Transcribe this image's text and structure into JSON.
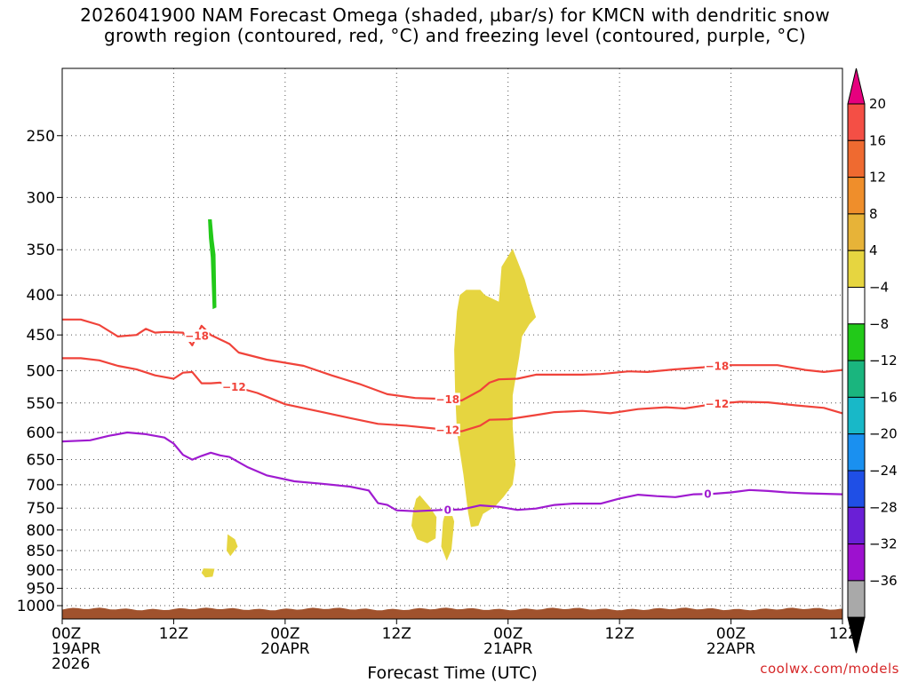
{
  "chart_data": {
    "type": "time-height",
    "title_line1": "2026041900 NAM Forecast Omega (shaded, µbar/s) for KMCN with dendritic snow",
    "title_line2": "growth region (contoured, red, °C) and freezing level (contoured, purple, °C)",
    "xlabel": "Forecast Time (UTC)",
    "xlim_hours": [
      0,
      84
    ],
    "ylim_hPa": [
      1040,
      205
    ],
    "ytick_values": [
      250,
      300,
      350,
      400,
      450,
      500,
      550,
      600,
      650,
      700,
      750,
      800,
      850,
      900,
      950,
      1000
    ],
    "ytick_labels": [
      "250",
      "300",
      "350",
      "400",
      "450",
      "500",
      "550",
      "600",
      "650",
      "700",
      "750",
      "800",
      "850",
      "900",
      "950",
      "1000"
    ],
    "xticks": [
      {
        "hour": 0,
        "lines": [
          "00Z",
          "19APR",
          "2026"
        ]
      },
      {
        "hour": 12,
        "lines": [
          "12Z"
        ]
      },
      {
        "hour": 24,
        "lines": [
          "00Z",
          "20APR"
        ]
      },
      {
        "hour": 36,
        "lines": [
          "12Z"
        ]
      },
      {
        "hour": 48,
        "lines": [
          "00Z",
          "21APR"
        ]
      },
      {
        "hour": 60,
        "lines": [
          "12Z"
        ]
      },
      {
        "hour": 72,
        "lines": [
          "00Z",
          "22APR"
        ]
      },
      {
        "hour": 84,
        "lines": [
          "12Z"
        ]
      }
    ],
    "grid": true,
    "colorbar": {
      "labels": [
        "20",
        "16",
        "12",
        "8",
        "4",
        "−4",
        "−8",
        "−12",
        "−16",
        "−20",
        "−24",
        "−28",
        "−32",
        "−36"
      ],
      "colors": [
        "#e6007e",
        "#f44f45",
        "#ef6a30",
        "#ef8e2b",
        "#e7b338",
        "#e6d540",
        "#ffffff",
        "#22c919",
        "#1ab57e",
        "#18b8c8",
        "#1a90f0",
        "#1f4fe6",
        "#6a1fd6",
        "#9d11cf",
        "#a9a9a9",
        "#000000"
      ]
    },
    "series": [
      {
        "name": "-18C isotherm",
        "color": "#f0433a",
        "label": "−18",
        "label_hours": [
          14.5,
          41.5,
          70.5
        ],
        "points": [
          [
            0,
            430
          ],
          [
            2,
            430
          ],
          [
            4,
            437
          ],
          [
            6,
            452
          ],
          [
            8,
            450
          ],
          [
            9,
            442
          ],
          [
            10,
            447
          ],
          [
            11,
            446
          ],
          [
            13,
            447
          ],
          [
            14,
            464
          ],
          [
            15,
            438
          ],
          [
            16,
            450
          ],
          [
            17,
            456
          ],
          [
            18,
            462
          ],
          [
            19,
            474
          ],
          [
            22,
            484
          ],
          [
            26,
            493
          ],
          [
            29,
            507
          ],
          [
            32,
            520
          ],
          [
            35,
            536
          ],
          [
            38,
            542
          ],
          [
            40,
            543
          ],
          [
            41,
            543
          ],
          [
            43,
            546
          ],
          [
            44,
            538
          ],
          [
            45,
            530
          ],
          [
            46,
            518
          ],
          [
            47,
            513
          ],
          [
            49,
            512
          ],
          [
            51,
            506
          ],
          [
            53,
            506
          ],
          [
            56,
            506
          ],
          [
            58,
            505
          ],
          [
            61,
            501
          ],
          [
            63,
            502
          ],
          [
            66,
            498
          ],
          [
            69,
            495
          ],
          [
            71,
            492
          ],
          [
            74,
            492
          ],
          [
            77,
            492
          ],
          [
            80,
            499
          ],
          [
            82,
            502
          ],
          [
            84,
            499
          ]
        ]
      },
      {
        "name": "-12C isotherm",
        "color": "#f0433a",
        "label": "−12",
        "label_hours": [
          18.5,
          41.5,
          70.5
        ],
        "points": [
          [
            0,
            482
          ],
          [
            2,
            482
          ],
          [
            4,
            485
          ],
          [
            6,
            493
          ],
          [
            8,
            498
          ],
          [
            10,
            507
          ],
          [
            12,
            512
          ],
          [
            13,
            503
          ],
          [
            14,
            502
          ],
          [
            15,
            519
          ],
          [
            16,
            519
          ],
          [
            17,
            518
          ],
          [
            19,
            526
          ],
          [
            21,
            534
          ],
          [
            24,
            552
          ],
          [
            28,
            565
          ],
          [
            31,
            575
          ],
          [
            34,
            585
          ],
          [
            37,
            588
          ],
          [
            40,
            593
          ],
          [
            43,
            598
          ],
          [
            45,
            588
          ],
          [
            46,
            578
          ],
          [
            48,
            577
          ],
          [
            51,
            570
          ],
          [
            53,
            565
          ],
          [
            56,
            563
          ],
          [
            59,
            567
          ],
          [
            62,
            560
          ],
          [
            65,
            557
          ],
          [
            67,
            559
          ],
          [
            70,
            552
          ],
          [
            73,
            548
          ],
          [
            76,
            549
          ],
          [
            79,
            554
          ],
          [
            82,
            558
          ],
          [
            84,
            567
          ]
        ]
      },
      {
        "name": "0C freezing level",
        "color": "#9f1bd0",
        "label": "0",
        "label_hours": [
          41.5,
          69.5
        ],
        "points": [
          [
            0,
            616
          ],
          [
            3,
            614
          ],
          [
            5,
            606
          ],
          [
            7,
            600
          ],
          [
            9,
            603
          ],
          [
            11,
            609
          ],
          [
            12,
            620
          ],
          [
            13,
            641
          ],
          [
            14,
            650
          ],
          [
            15,
            643
          ],
          [
            16,
            637
          ],
          [
            17,
            642
          ],
          [
            18,
            645
          ],
          [
            20,
            665
          ],
          [
            22,
            681
          ],
          [
            25,
            693
          ],
          [
            28,
            698
          ],
          [
            31,
            704
          ],
          [
            33,
            712
          ],
          [
            34,
            739
          ],
          [
            35,
            743
          ],
          [
            36,
            755
          ],
          [
            38,
            757
          ],
          [
            40,
            755
          ],
          [
            41,
            754
          ],
          [
            43,
            753
          ],
          [
            45,
            744
          ],
          [
            47,
            747
          ],
          [
            49,
            754
          ],
          [
            51,
            751
          ],
          [
            53,
            743
          ],
          [
            55,
            740
          ],
          [
            58,
            740
          ],
          [
            60,
            729
          ],
          [
            62,
            721
          ],
          [
            64,
            724
          ],
          [
            66,
            726
          ],
          [
            68,
            720
          ],
          [
            70,
            719
          ],
          [
            72,
            716
          ],
          [
            74,
            711
          ],
          [
            76,
            713
          ],
          [
            78,
            716
          ],
          [
            80,
            718
          ],
          [
            84,
            720
          ]
        ]
      }
    ],
    "shaded": [
      {
        "name": "omega 4-8 region",
        "color": "#e6d540",
        "polygons": [
          [
            [
              42.8,
              400
            ],
            [
              43.5,
              394
            ],
            [
              45,
              394
            ],
            [
              45.5,
              400
            ],
            [
              47,
              408
            ],
            [
              47.3,
              368
            ],
            [
              48.5,
              349
            ],
            [
              49.8,
              382
            ],
            [
              50.5,
              409
            ],
            [
              51,
              427
            ],
            [
              50.3,
              436
            ],
            [
              49.5,
              452
            ],
            [
              49.2,
              480
            ],
            [
              48.5,
              538
            ],
            [
              48.5,
              590
            ],
            [
              48.8,
              660
            ],
            [
              48.5,
              700
            ],
            [
              47.5,
              726
            ],
            [
              46.6,
              746
            ],
            [
              45.3,
              763
            ],
            [
              44.8,
              790
            ],
            [
              44,
              793
            ],
            [
              43.7,
              760
            ],
            [
              43.2,
              680
            ],
            [
              42.5,
              600
            ],
            [
              42.3,
              530
            ],
            [
              42.2,
              470
            ],
            [
              42.5,
              420
            ]
          ],
          [
            [
              38.5,
              722
            ],
            [
              39.6,
              748
            ],
            [
              40.3,
              770
            ],
            [
              40.2,
              820
            ],
            [
              39.3,
              832
            ],
            [
              38.2,
              822
            ],
            [
              37.6,
              790
            ],
            [
              37.8,
              755
            ],
            [
              38.1,
              730
            ]
          ],
          [
            [
              41.7,
              748
            ],
            [
              42.2,
              780
            ],
            [
              41.9,
              848
            ],
            [
              41.4,
              876
            ],
            [
              40.8,
              840
            ],
            [
              41.0,
              780
            ],
            [
              41.3,
              755
            ]
          ],
          [
            [
              15.2,
              896
            ],
            [
              16.4,
              897
            ],
            [
              16.2,
              918
            ],
            [
              15.4,
              920
            ],
            [
              15.0,
              908
            ]
          ],
          [
            [
              17.8,
              810
            ],
            [
              18.6,
              822
            ],
            [
              18.9,
              840
            ],
            [
              18.1,
              864
            ],
            [
              17.7,
              850
            ]
          ]
        ]
      },
      {
        "name": "omega -8 to -4 region",
        "color": "#22c919",
        "polygons": [
          [
            [
              15.7,
              320
            ],
            [
              16.1,
              320
            ],
            [
              16.3,
              340
            ],
            [
              16.5,
              355
            ],
            [
              16.6,
              415
            ],
            [
              16.2,
              417
            ],
            [
              16.0,
              358
            ],
            [
              15.8,
              338
            ]
          ]
        ]
      }
    ],
    "surface": {
      "color": "#a0522d",
      "pressure_hPa": 1010
    }
  },
  "footer": {
    "credit": "coolwx.com/models"
  }
}
